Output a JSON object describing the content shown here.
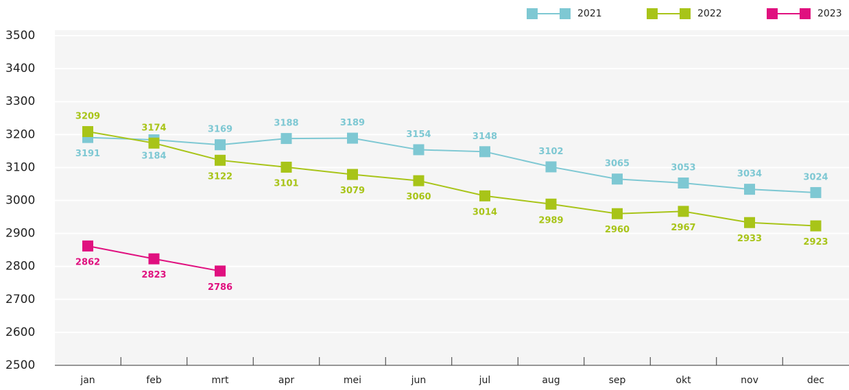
{
  "chart_data": {
    "type": "line",
    "categories": [
      "jan",
      "feb",
      "mrt",
      "apr",
      "mei",
      "jun",
      "jul",
      "aug",
      "sep",
      "okt",
      "nov",
      "dec"
    ],
    "series": [
      {
        "name": "2021",
        "color": "#7ec8d3",
        "values": [
          3191,
          3184,
          3169,
          3188,
          3189,
          3154,
          3148,
          3102,
          3065,
          3053,
          3034,
          3024
        ]
      },
      {
        "name": "2022",
        "color": "#a8c418",
        "values": [
          3209,
          3174,
          3122,
          3101,
          3079,
          3060,
          3014,
          2989,
          2960,
          2967,
          2933,
          2923
        ]
      },
      {
        "name": "2023",
        "color": "#e0107f",
        "values": [
          2862,
          2823,
          2786,
          null,
          null,
          null,
          null,
          null,
          null,
          null,
          null,
          null
        ]
      }
    ],
    "ylim": [
      2500,
      3500
    ],
    "yticks": [
      2500,
      2600,
      2700,
      2800,
      2900,
      3000,
      3100,
      3200,
      3300,
      3400,
      3500
    ],
    "grid": true,
    "legend": "top-right"
  }
}
